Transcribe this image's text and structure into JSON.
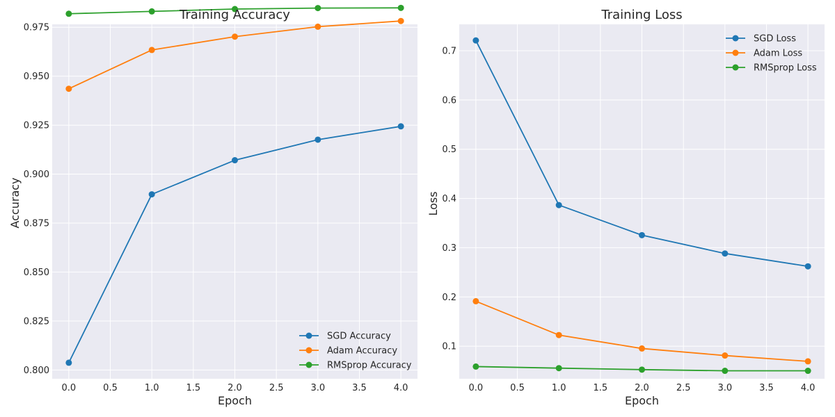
{
  "chart_data": [
    {
      "type": "line",
      "title": "Training Accuracy",
      "xlabel": "Epoch",
      "ylabel": "Accuracy",
      "x": [
        0,
        1,
        2,
        3,
        4
      ],
      "xlim": [
        -0.2,
        4.2
      ],
      "ylim": [
        0.7955,
        0.9765
      ],
      "ylim_note": "top is approx",
      "xticks": [
        0.0,
        0.5,
        1.0,
        1.5,
        2.0,
        2.5,
        3.0,
        3.5,
        4.0
      ],
      "yticks": [
        0.8,
        0.825,
        0.85,
        0.875,
        0.9,
        0.925,
        0.95,
        0.975
      ],
      "xtick_labels": [
        "0.0",
        "0.5",
        "1.0",
        "1.5",
        "2.0",
        "2.5",
        "3.0",
        "3.5",
        "4.0"
      ],
      "ytick_labels": [
        "0.800",
        "0.825",
        "0.850",
        "0.875",
        "0.900",
        "0.925",
        "0.950",
        "0.975"
      ],
      "grid": true,
      "legend_position": "bottom-right",
      "series": [
        {
          "name": "SGD Accuracy",
          "color": "#1f77b4",
          "values": [
            0.8037,
            0.8897,
            0.9071,
            0.9176,
            0.9244
          ]
        },
        {
          "name": "Adam Accuracy",
          "color": "#ff7f0e",
          "values": [
            0.9436,
            0.9634,
            0.9702,
            0.9753,
            0.9782
          ]
        },
        {
          "name": "RMSprop Accuracy",
          "color": "#2ca02c",
          "values": [
            0.9819,
            0.9831,
            0.9843,
            0.9848,
            0.9849
          ]
        }
      ]
    },
    {
      "type": "line",
      "title": "Training Loss",
      "xlabel": "Epoch",
      "ylabel": "Loss",
      "x": [
        0,
        1,
        2,
        3,
        4
      ],
      "xlim": [
        -0.2,
        4.2
      ],
      "ylim": [
        0.0338,
        0.7537
      ],
      "xticks": [
        0.0,
        0.5,
        1.0,
        1.5,
        2.0,
        2.5,
        3.0,
        3.5,
        4.0
      ],
      "yticks": [
        0.1,
        0.2,
        0.3,
        0.4,
        0.5,
        0.6,
        0.7
      ],
      "xtick_labels": [
        "0.0",
        "0.5",
        "1.0",
        "1.5",
        "2.0",
        "2.5",
        "3.0",
        "3.5",
        "4.0"
      ],
      "ytick_labels": [
        "0.1",
        "0.2",
        "0.3",
        "0.4",
        "0.5",
        "0.6",
        "0.7"
      ],
      "grid": true,
      "legend_position": "top-right",
      "series": [
        {
          "name": "SGD Loss",
          "color": "#1f77b4",
          "values": [
            0.721,
            0.3866,
            0.3255,
            0.2883,
            0.2622
          ]
        },
        {
          "name": "Adam Loss",
          "color": "#ff7f0e",
          "values": [
            0.1913,
            0.1226,
            0.0953,
            0.081,
            0.0692
          ]
        },
        {
          "name": "RMSprop Loss",
          "color": "#2ca02c",
          "values": [
            0.0586,
            0.0554,
            0.0524,
            0.05,
            0.05
          ]
        }
      ]
    }
  ]
}
